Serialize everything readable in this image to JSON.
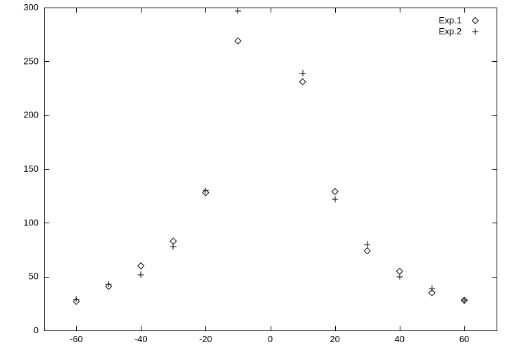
{
  "window": {
    "background": "#ffffff"
  },
  "chart_data": {
    "type": "scatter",
    "title": "",
    "xlabel": "",
    "ylabel": "",
    "xlim": [
      -70,
      70
    ],
    "ylim": [
      0,
      300
    ],
    "x_ticks": [
      -60,
      -40,
      -20,
      0,
      20,
      40,
      60
    ],
    "y_ticks": [
      0,
      50,
      100,
      150,
      200,
      250,
      300
    ],
    "grid": false,
    "legend_position": "top-right",
    "axis_color": "#000000",
    "text_color": "#000000",
    "marker_size": 9,
    "series": [
      {
        "name": "Exp.1",
        "marker": "diamond",
        "color": "#000000",
        "points": [
          [
            -60,
            27
          ],
          [
            -50,
            41
          ],
          [
            -40,
            60
          ],
          [
            -30,
            83
          ],
          [
            -20,
            128
          ],
          [
            -10,
            269
          ],
          [
            10,
            231
          ],
          [
            20,
            129
          ],
          [
            30,
            74
          ],
          [
            40,
            55
          ],
          [
            50,
            35
          ],
          [
            60,
            28
          ]
        ]
      },
      {
        "name": "Exp.2",
        "marker": "plus",
        "color": "#000000",
        "points": [
          [
            -60,
            29
          ],
          [
            -50,
            43
          ],
          [
            -40,
            52
          ],
          [
            -30,
            78
          ],
          [
            -20,
            130
          ],
          [
            -10,
            297
          ],
          [
            10,
            239
          ],
          [
            20,
            122
          ],
          [
            30,
            80
          ],
          [
            40,
            50
          ],
          [
            50,
            39
          ],
          [
            60,
            28
          ]
        ]
      }
    ]
  }
}
